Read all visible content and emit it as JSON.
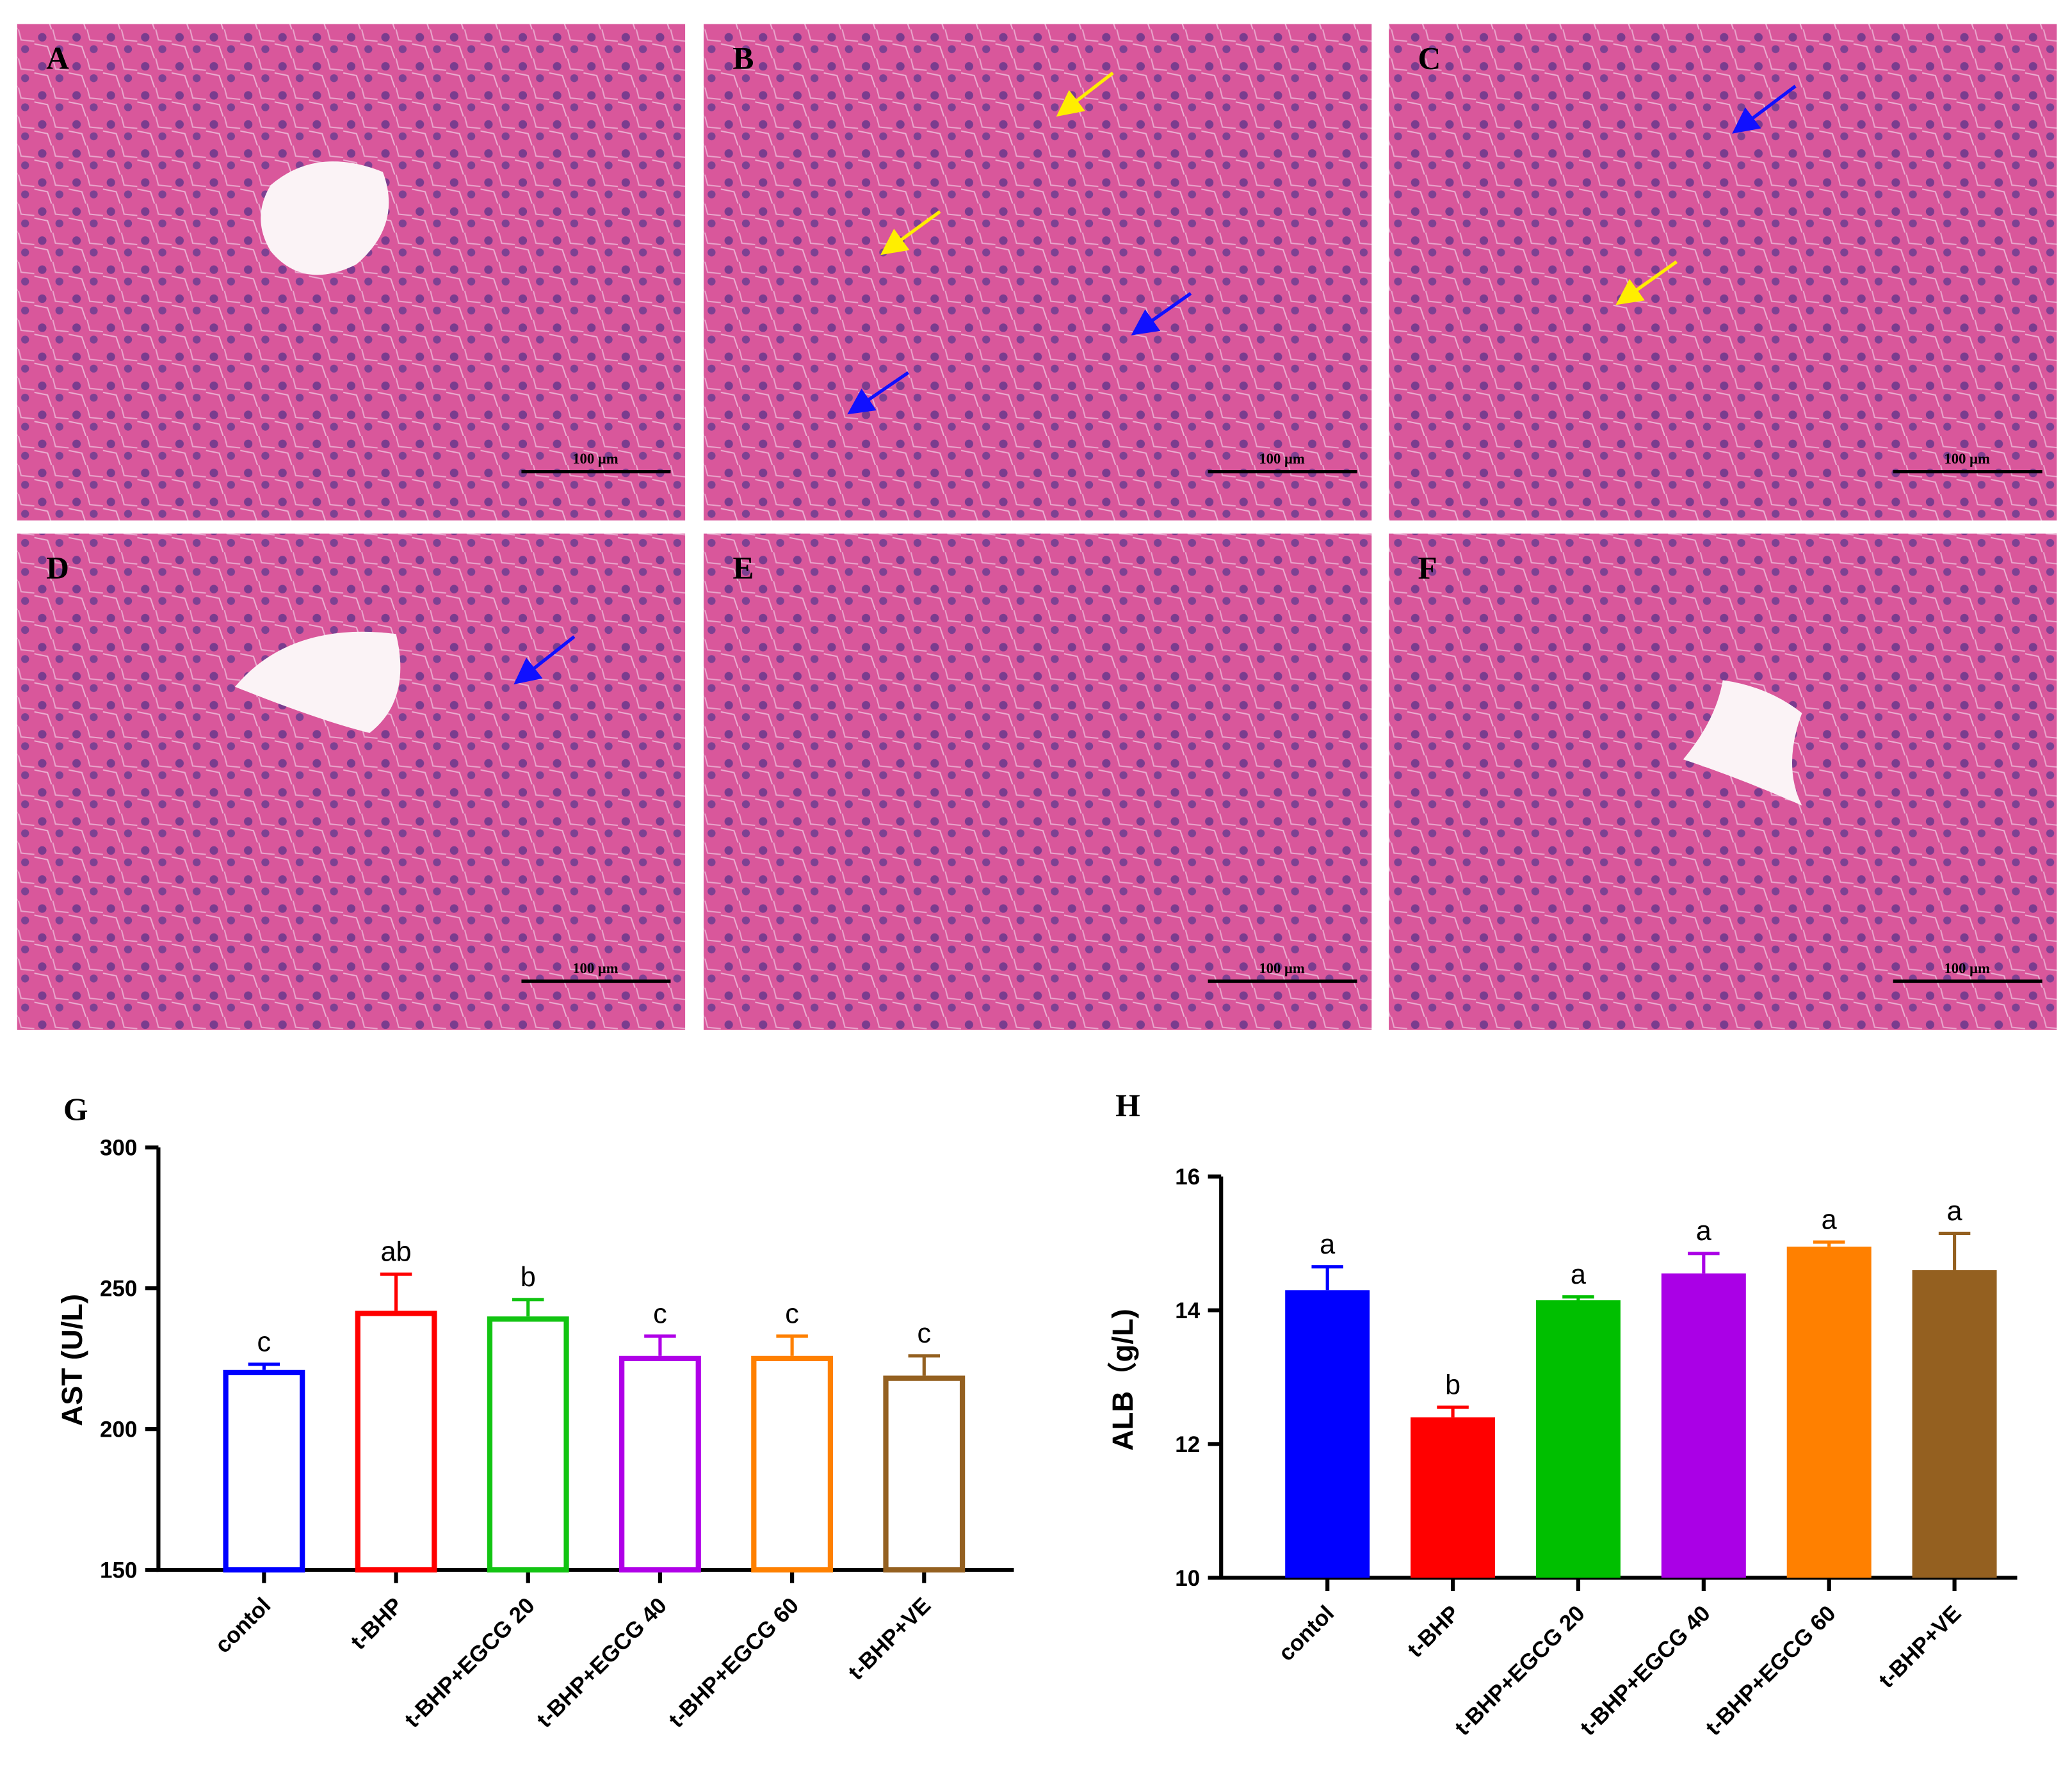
{
  "micrographs": [
    {
      "label": "A",
      "scale_bar": "100 μm"
    },
    {
      "label": "B",
      "scale_bar": "100 μm"
    },
    {
      "label": "C",
      "scale_bar": "100 μm"
    },
    {
      "label": "D",
      "scale_bar": "100 μm"
    },
    {
      "label": "E",
      "scale_bar": "100 μm"
    },
    {
      "label": "F",
      "scale_bar": "100 μm"
    }
  ],
  "chart_data": [
    {
      "type": "bar",
      "panel_label": "G",
      "y_label": "AST (U/L)",
      "bar_style": "outline",
      "categories": [
        "contol",
        "t-BHP",
        "t-BHP+EGCG 20",
        "t-BHP+EGCG 40",
        "t-BHP+EGCG 60",
        "t-BHP+VE"
      ],
      "values": [
        221,
        242,
        240,
        226,
        226,
        219
      ],
      "errors": [
        2,
        13,
        6,
        7,
        7,
        7
      ],
      "letters": [
        "c",
        "ab",
        "b",
        "c",
        "c",
        "c"
      ],
      "colors": [
        "#0000ff",
        "#ff0000",
        "#12c412",
        "#b000e8",
        "#ff8000",
        "#946020"
      ],
      "ylim": [
        150,
        300
      ],
      "yticks": [
        150,
        200,
        250,
        300
      ]
    },
    {
      "type": "bar",
      "panel_label": "H",
      "y_label": "ALB（g/L)",
      "bar_style": "solid",
      "categories": [
        "contol",
        "t-BHP",
        "t-BHP+EGCG 20",
        "t-BHP+EGCG 40",
        "t-BHP+EGCG 60",
        "t-BHP+VE"
      ],
      "values": [
        14.3,
        12.4,
        14.15,
        14.55,
        14.95,
        14.6
      ],
      "errors": [
        0.35,
        0.15,
        0.05,
        0.3,
        0.07,
        0.55
      ],
      "letters": [
        "a",
        "b",
        "a",
        "a",
        "a",
        "a"
      ],
      "colors": [
        "#0000ff",
        "#ff0000",
        "#00bf00",
        "#aa00e6",
        "#ff8000",
        "#946020"
      ],
      "ylim": [
        10,
        16
      ],
      "yticks": [
        10,
        12,
        14,
        16
      ]
    }
  ]
}
